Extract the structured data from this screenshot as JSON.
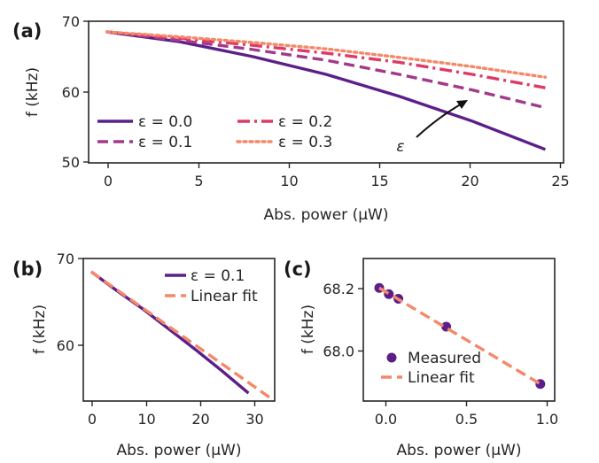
{
  "chart_data": [
    {
      "panel": "(a)",
      "type": "line",
      "xlabel": "Abs. power (μW)",
      "ylabel": "f (kHz)",
      "xlim": [
        -1,
        25
      ],
      "ylim": [
        50,
        70
      ],
      "xticks": [
        "0",
        "5",
        "10",
        "15",
        "20",
        "25"
      ],
      "yticks": [
        "50",
        "60",
        "70"
      ],
      "legend": "lower-left, two columns",
      "annotation": "ε",
      "series": [
        {
          "name": "ε = 0.0",
          "style": "solid",
          "color": "#5c1f8a",
          "x": [
            0,
            4,
            8,
            12,
            16,
            20,
            24
          ],
          "y": [
            68.5,
            67.1,
            65.0,
            62.5,
            59.4,
            55.9,
            51.9
          ]
        },
        {
          "name": "ε = 0.1",
          "style": "dashed",
          "color": "#a23a8c",
          "x": [
            0,
            4,
            8,
            12,
            16,
            20,
            24
          ],
          "y": [
            68.5,
            67.3,
            66.0,
            64.5,
            62.5,
            60.3,
            57.8
          ]
        },
        {
          "name": "ε = 0.2",
          "style": "dashdot",
          "color": "#dd3a67",
          "x": [
            0,
            4,
            8,
            12,
            16,
            20,
            24
          ],
          "y": [
            68.5,
            67.6,
            66.6,
            65.5,
            64.2,
            62.5,
            60.6
          ]
        },
        {
          "name": "ε = 0.3",
          "style": "dotted",
          "color": "#f4896a",
          "x": [
            0,
            4,
            8,
            12,
            16,
            20,
            24
          ],
          "y": [
            68.5,
            67.8,
            67.0,
            66.1,
            64.9,
            63.6,
            62.1
          ]
        }
      ]
    },
    {
      "panel": "(b)",
      "type": "line",
      "xlabel": "Abs. power (μW)",
      "ylabel": "f (kHz)",
      "xlim": [
        -1.5,
        35
      ],
      "ylim": [
        53.8,
        70
      ],
      "xticks": [
        "0",
        "10",
        "20",
        "30"
      ],
      "yticks": [
        "60",
        "70"
      ],
      "legend": "top-right",
      "series": [
        {
          "name": "ε = 0.1",
          "style": "solid",
          "color": "#5c1f8a",
          "x": [
            0,
            5,
            10,
            15,
            20,
            25,
            30
          ],
          "y": [
            68.5,
            66.3,
            64.2,
            61.9,
            59.6,
            57.2,
            54.7
          ]
        },
        {
          "name": "Linear fit",
          "style": "dashed",
          "color": "#f4896a",
          "x": [
            0,
            35
          ],
          "y": [
            68.5,
            53.8
          ]
        }
      ]
    },
    {
      "panel": "(c)",
      "type": "scatter",
      "xlabel": "Abs. power (μW)",
      "ylabel": "f (kHz)",
      "xlim": [
        -0.05,
        1.15
      ],
      "ylim": [
        67.85,
        68.31
      ],
      "xticks": [
        "0.0",
        "0.5",
        "1.0"
      ],
      "yticks": [
        "68.0",
        "68.2"
      ],
      "legend": "lower-left",
      "series": [
        {
          "name": "Measured",
          "marker": "circle",
          "color": "#5c1f8a",
          "x": [
            0.05,
            0.11,
            0.17,
            0.47,
            1.06
          ],
          "y": [
            68.215,
            68.195,
            68.18,
            68.09,
            67.905
          ]
        },
        {
          "name": "Linear fit",
          "style": "dashed",
          "color": "#f4896a",
          "x": [
            0.05,
            1.06
          ],
          "y": [
            68.215,
            67.905
          ]
        }
      ]
    }
  ]
}
